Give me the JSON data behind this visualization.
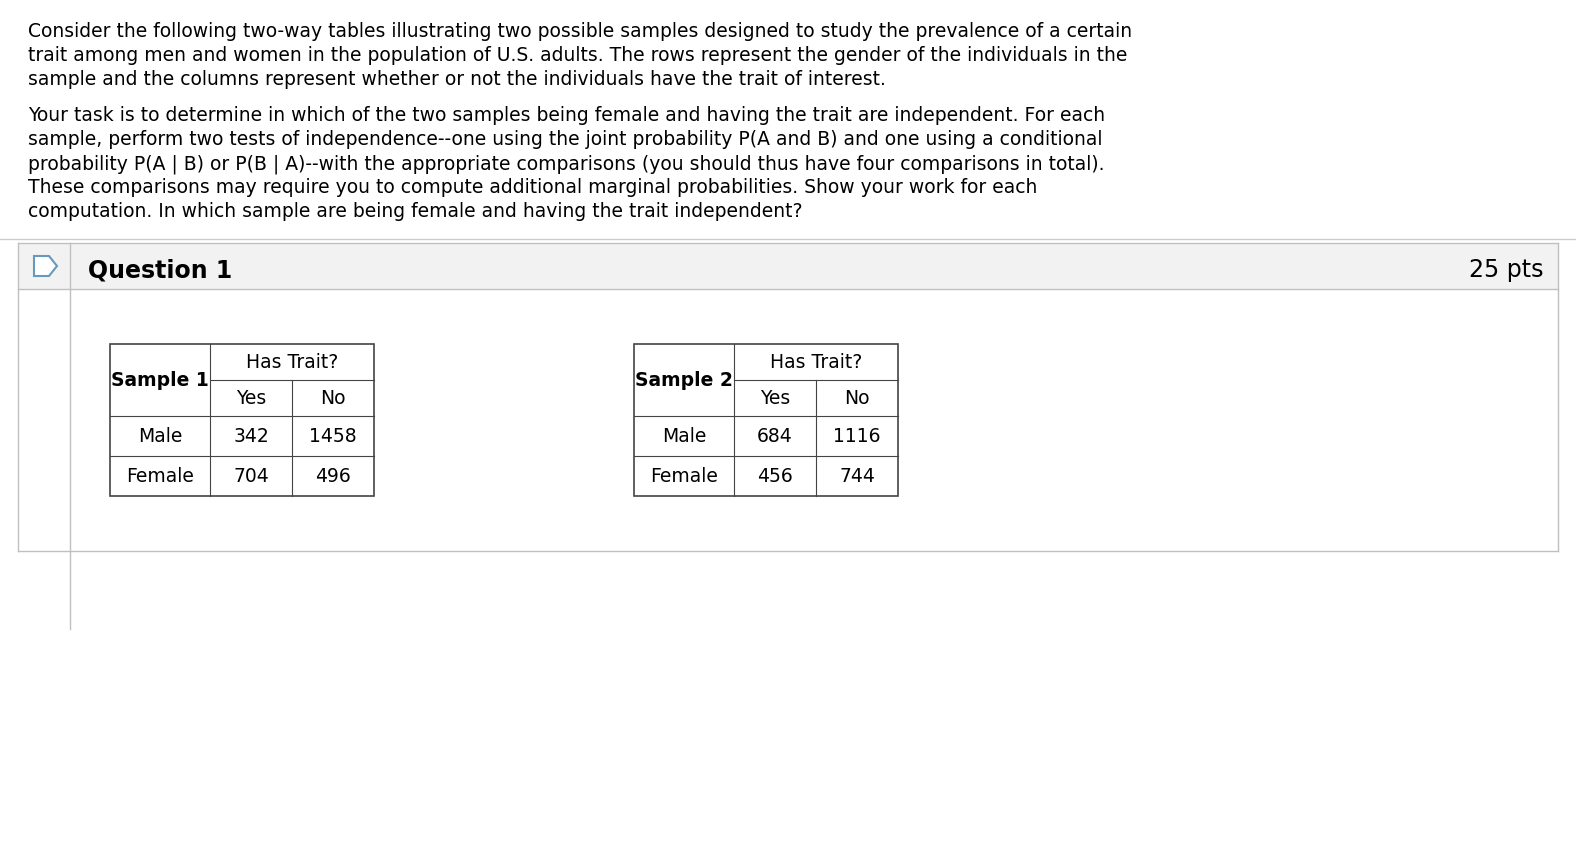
{
  "bg_color": "#ffffff",
  "top_text_lines": [
    "Consider the following two-way tables illustrating two possible samples designed to study the prevalence of a certain",
    "trait among men and women in the population of U.S. adults. The rows represent the gender of the individuals in the",
    "sample and the columns represent whether or not the individuals have the trait of interest."
  ],
  "middle_text_lines": [
    "Your task is to determine in which of the two samples being female and having the trait are independent. For each",
    "sample, perform two tests of independence--one using the joint probability P(A and B) and one using a conditional",
    "probability P(A | B) or P(B | A)--with the appropriate comparisons (you should thus have four comparisons in total).",
    "These comparisons may require you to compute additional marginal probabilities. Show your work for each",
    "computation. In which sample are being female and having the trait independent?"
  ],
  "question_label": "Question 1",
  "points_label": "25 pts",
  "sample1_label": "Sample 1",
  "sample2_label": "Sample 2",
  "has_trait_label": "Has Trait?",
  "col_headers": [
    "Yes",
    "No"
  ],
  "row_headers": [
    "Male",
    "Female"
  ],
  "sample1_data": [
    [
      342,
      1458
    ],
    [
      704,
      496
    ]
  ],
  "sample2_data": [
    [
      684,
      1116
    ],
    [
      456,
      744
    ]
  ],
  "text_color": "#000000",
  "light_gray": "#f5f5f5",
  "border_gray": "#cccccc",
  "header_bg": "#f2f2f2",
  "question_border": "#c0c0c0",
  "left_bar_color": "#c8c8c8",
  "arrow_color": "#6699bb",
  "font_size_body": 13.5,
  "font_size_question": 17,
  "font_size_table": 13.5,
  "fig_width": 15.76,
  "fig_height": 8.54,
  "dpi": 100
}
